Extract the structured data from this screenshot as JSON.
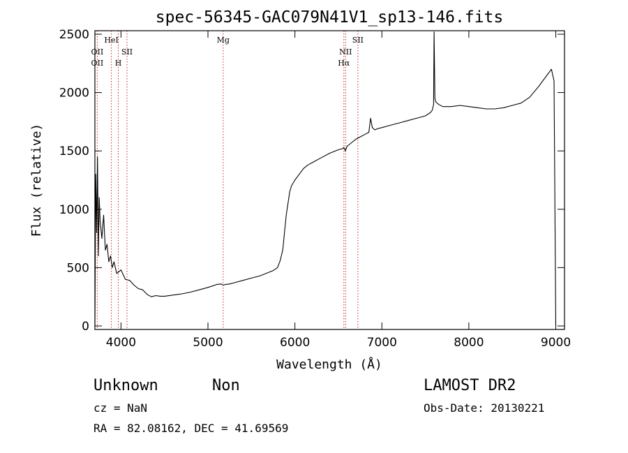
{
  "chart_data": {
    "type": "line",
    "title": "spec-56345-GAC079N41V1_sp13-146.fits",
    "xlabel": "Wavelength (Å)",
    "ylabel": "Flux (relative)",
    "xlim": [
      3700,
      9100
    ],
    "ylim": [
      -30,
      2530
    ],
    "xticks": [
      4000,
      5000,
      6000,
      7000,
      8000,
      9000
    ],
    "yticks": [
      0,
      500,
      1000,
      1500,
      2000,
      2500
    ],
    "grid": false,
    "series_color": "#000000",
    "line_marker_color": "#cc2222",
    "line_markers": [
      {
        "name": "OII",
        "wavelength": 3727
      },
      {
        "name": "HeI",
        "wavelength": 3889
      },
      {
        "name": "H",
        "wavelength": 3969
      },
      {
        "name": "SII",
        "wavelength": 4069
      },
      {
        "name": "Mg",
        "wavelength": 5175
      },
      {
        "name": "NII",
        "wavelength": 6583
      },
      {
        "name": "Hα",
        "wavelength": 6563
      },
      {
        "name": "SII",
        "wavelength": 6724
      }
    ],
    "line_label_rows": [
      [
        {
          "text": "HeI",
          "wavelength": 3889
        },
        {
          "text": "Mg",
          "wavelength": 5175
        },
        {
          "text": "SII",
          "wavelength": 6724
        }
      ],
      [
        {
          "text": "OII",
          "wavelength": 3727
        },
        {
          "text": "SII",
          "wavelength": 4069
        },
        {
          "text": "NII",
          "wavelength": 6583
        }
      ],
      [
        {
          "text": "OII",
          "wavelength": 3727
        },
        {
          "text": "H",
          "wavelength": 3969
        },
        {
          "text": "Hα",
          "wavelength": 6563
        }
      ]
    ],
    "series": [
      {
        "x": [
          3700,
          3710,
          3720,
          3730,
          3740,
          3750,
          3760,
          3780,
          3800,
          3820,
          3840,
          3860,
          3880,
          3900,
          3920,
          3950,
          4000,
          4050,
          4100,
          4150,
          4200,
          4250,
          4300,
          4350,
          4400,
          4450,
          4500,
          4600,
          4700,
          4800,
          4900,
          5000,
          5100,
          5150,
          5175,
          5200,
          5250,
          5300,
          5400,
          5500,
          5600,
          5700,
          5750,
          5800,
          5830,
          5860,
          5880,
          5900,
          5920,
          5940,
          5960,
          6000,
          6050,
          6100,
          6150,
          6200,
          6300,
          6400,
          6500,
          6550,
          6563,
          6580,
          6600,
          6650,
          6700,
          6750,
          6800,
          6850,
          6870,
          6890,
          6920,
          6950,
          7000,
          7100,
          7200,
          7300,
          7400,
          7500,
          7560,
          7580,
          7595,
          7600,
          7610,
          7620,
          7650,
          7700,
          7800,
          7900,
          8000,
          8100,
          8200,
          8300,
          8400,
          8500,
          8600,
          8700,
          8800,
          8900,
          8950,
          8980,
          9000
        ],
        "values": [
          0,
          1300,
          800,
          1450,
          600,
          1100,
          900,
          750,
          950,
          650,
          700,
          550,
          600,
          500,
          550,
          450,
          480,
          400,
          390,
          350,
          320,
          310,
          270,
          250,
          260,
          255,
          255,
          265,
          275,
          290,
          310,
          330,
          355,
          360,
          350,
          355,
          360,
          370,
          390,
          410,
          430,
          460,
          475,
          500,
          560,
          650,
          800,
          950,
          1050,
          1150,
          1200,
          1250,
          1300,
          1350,
          1380,
          1400,
          1440,
          1480,
          1510,
          1520,
          1530,
          1500,
          1540,
          1570,
          1600,
          1620,
          1640,
          1660,
          1780,
          1700,
          1680,
          1690,
          1700,
          1720,
          1740,
          1760,
          1780,
          1800,
          1830,
          1850,
          1900,
          2520,
          1950,
          1920,
          1900,
          1880,
          1880,
          1890,
          1880,
          1870,
          1860,
          1860,
          1870,
          1890,
          1910,
          1960,
          2050,
          2150,
          2200,
          2100,
          0
        ]
      }
    ]
  },
  "footer": {
    "object_class": "Unknown",
    "object_subclass": "Non",
    "survey": "LAMOST DR2",
    "cz": "cz = NaN",
    "obs_date": "Obs-Date: 20130221",
    "coords": "RA =  82.08162, DEC =  41.69569"
  }
}
